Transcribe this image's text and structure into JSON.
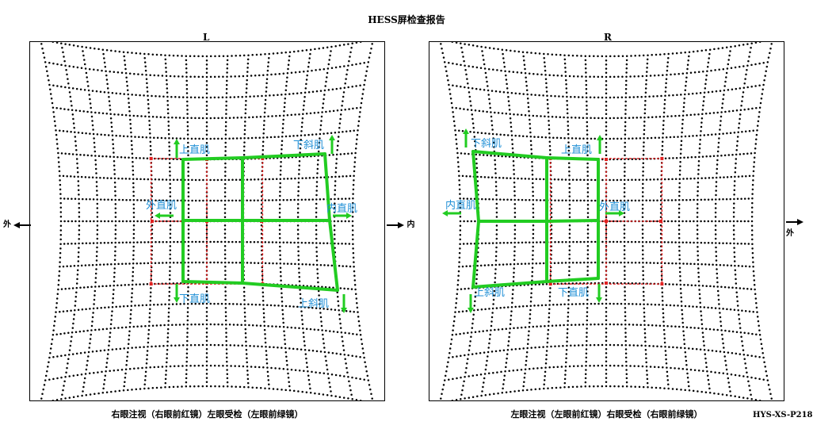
{
  "report": {
    "title": "HESS屏检查报告",
    "device_code": "HYS-XS-P218"
  },
  "directions": {
    "out": "外",
    "in": "内"
  },
  "panels": [
    {
      "eye": "L",
      "caption": "右眼注视（右眼前红镜）左眼受检（左眼前绿镜）",
      "labels": [
        "上直肌",
        "下斜肌",
        "外直肌",
        "内直肌",
        "下直肌",
        "上斜肌"
      ]
    },
    {
      "eye": "R",
      "caption": "左眼注视（左眼前红镜）右眼受检（右眼前绿镜）",
      "labels": [
        "下斜肌",
        "上直肌",
        "内直肌",
        "外直肌",
        "上斜肌",
        "下直肌"
      ]
    }
  ],
  "colors": {
    "grid_dots": "#000000",
    "normal_field": "#e02020",
    "measured_field": "#22cc22",
    "muscle_label": "#1f8fd6"
  }
}
